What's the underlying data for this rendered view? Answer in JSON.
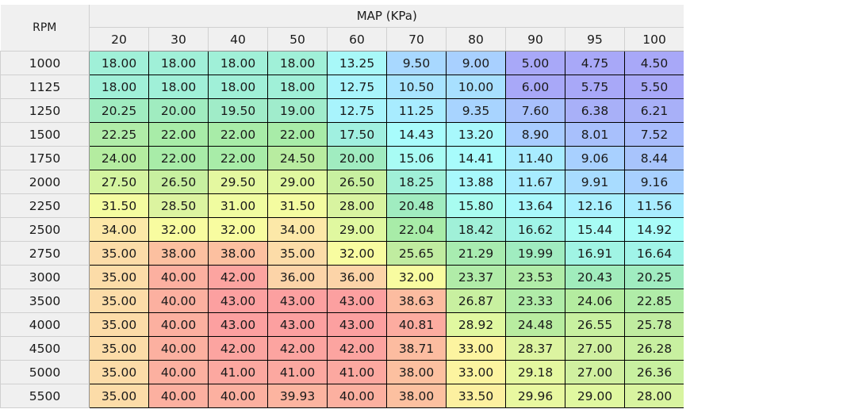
{
  "table": {
    "corner_label": "RPM",
    "column_group_label": "MAP (KPa)",
    "columns": [
      "20",
      "30",
      "40",
      "50",
      "60",
      "70",
      "80",
      "90",
      "95",
      "100"
    ],
    "rows": [
      {
        "rpm": "1000",
        "values": [
          "18.00",
          "18.00",
          "18.00",
          "18.00",
          "13.25",
          "9.50",
          "9.00",
          "5.00",
          "4.75",
          "4.50"
        ],
        "colors": [
          "#a0f0d8",
          "#a0f0d8",
          "#a0f0d8",
          "#a0f0d8",
          "#a8f8f8",
          "#a8d8ff",
          "#a8d0ff",
          "#a8a8f8",
          "#a8a8f8",
          "#a8a8f8"
        ]
      },
      {
        "rpm": "1125",
        "values": [
          "18.00",
          "18.00",
          "18.00",
          "18.00",
          "12.75",
          "10.50",
          "10.00",
          "6.00",
          "5.75",
          "5.50"
        ],
        "colors": [
          "#a0f0d8",
          "#a0f0d8",
          "#a0f0d8",
          "#a0f0d8",
          "#a8f4fc",
          "#a8e4ff",
          "#a8e0ff",
          "#a8a8f8",
          "#a8a8f8",
          "#a8a8f8"
        ]
      },
      {
        "rpm": "1250",
        "values": [
          "20.25",
          "20.00",
          "19.50",
          "19.00",
          "12.75",
          "11.25",
          "9.35",
          "7.60",
          "6.38",
          "6.21"
        ],
        "colors": [
          "#a0ecc0",
          "#a0ecc0",
          "#a0ecc8",
          "#a0eccc",
          "#a8f4fc",
          "#a8ecff",
          "#a8d4ff",
          "#a8c0fc",
          "#a8b0f8",
          "#a8b0f8"
        ]
      },
      {
        "rpm": "1500",
        "values": [
          "22.25",
          "22.00",
          "22.00",
          "22.00",
          "17.50",
          "14.43",
          "13.20",
          "8.90",
          "8.01",
          "7.52"
        ],
        "colors": [
          "#b0eca8",
          "#a8eca8",
          "#a8eca8",
          "#a8eca8",
          "#a0f0e0",
          "#a8fcfc",
          "#a8f8fc",
          "#a8ccff",
          "#a8c0fc",
          "#a8bcfc"
        ]
      },
      {
        "rpm": "1750",
        "values": [
          "24.00",
          "22.00",
          "22.00",
          "24.50",
          "20.00",
          "15.06",
          "14.41",
          "11.40",
          "9.06",
          "8.44"
        ],
        "colors": [
          "#b4eca0",
          "#a8eca8",
          "#a8eca8",
          "#b8eca0",
          "#a0ecc0",
          "#a8fcf4",
          "#a8fcfc",
          "#a8ecff",
          "#a8d0ff",
          "#a8c4fc"
        ]
      },
      {
        "rpm": "2000",
        "values": [
          "27.50",
          "26.50",
          "29.50",
          "29.00",
          "26.50",
          "18.25",
          "13.88",
          "11.67",
          "9.91",
          "9.16"
        ],
        "colors": [
          "#d4f4a0",
          "#c8f0a0",
          "#e4f8a0",
          "#e0f8a0",
          "#c8f0a0",
          "#a0f0d8",
          "#a8f8fc",
          "#a8ecff",
          "#a8dcff",
          "#a8d0ff"
        ]
      },
      {
        "rpm": "2250",
        "values": [
          "31.50",
          "28.50",
          "31.00",
          "31.50",
          "28.00",
          "20.48",
          "15.80",
          "13.64",
          "12.16",
          "11.56"
        ],
        "colors": [
          "#f4fca0",
          "#dcf4a0",
          "#f0fca0",
          "#f4fca0",
          "#d8f4a0",
          "#a0ecc0",
          "#a8fcf0",
          "#a8f8fc",
          "#a8f0ff",
          "#a8ecff"
        ]
      },
      {
        "rpm": "2500",
        "values": [
          "34.00",
          "32.00",
          "32.00",
          "34.00",
          "29.00",
          "22.04",
          "18.42",
          "16.62",
          "15.44",
          "14.92"
        ],
        "colors": [
          "#fce8a8",
          "#f8fca0",
          "#f8fca0",
          "#fce8a8",
          "#e0f8a0",
          "#a8eca8",
          "#a0f0d8",
          "#a0f4e8",
          "#a8fcf4",
          "#a8fcf8"
        ]
      },
      {
        "rpm": "2750",
        "values": [
          "35.00",
          "38.00",
          "38.00",
          "35.00",
          "32.00",
          "25.65",
          "21.29",
          "19.99",
          "16.91",
          "16.64"
        ],
        "colors": [
          "#fcdca8",
          "#fcc0a0",
          "#fcc0a0",
          "#fcdca8",
          "#f8fca0",
          "#c0eca0",
          "#a8ecb0",
          "#a0ecc0",
          "#a0f4e4",
          "#a0f4e8"
        ]
      },
      {
        "rpm": "3000",
        "values": [
          "35.00",
          "40.00",
          "42.00",
          "36.00",
          "36.00",
          "32.00",
          "23.37",
          "23.53",
          "20.43",
          "20.25"
        ],
        "colors": [
          "#fcdca8",
          "#fcb0a0",
          "#fca4a0",
          "#fcd4a8",
          "#fcd4a8",
          "#f8fca0",
          "#b0eca8",
          "#b0eca8",
          "#a0ecbc",
          "#a0ecc0"
        ]
      },
      {
        "rpm": "3500",
        "values": [
          "35.00",
          "40.00",
          "43.00",
          "43.00",
          "43.00",
          "38.63",
          "26.87",
          "23.33",
          "24.06",
          "22.85"
        ],
        "colors": [
          "#fcdca8",
          "#fcb0a0",
          "#fca0a0",
          "#fca0a0",
          "#fca0a0",
          "#fcbca0",
          "#c8f0a0",
          "#b0eca8",
          "#b4eca0",
          "#b0eca8"
        ]
      },
      {
        "rpm": "4000",
        "values": [
          "35.00",
          "40.00",
          "43.00",
          "43.00",
          "43.00",
          "40.81",
          "28.92",
          "24.48",
          "26.55",
          "25.78"
        ],
        "colors": [
          "#fcdca8",
          "#fcb0a0",
          "#fca0a0",
          "#fca0a0",
          "#fca0a0",
          "#fcaca0",
          "#e0f8a0",
          "#b8eca0",
          "#c8f0a0",
          "#c0eca0"
        ]
      },
      {
        "rpm": "4500",
        "values": [
          "35.00",
          "40.00",
          "42.00",
          "42.00",
          "42.00",
          "38.71",
          "33.00",
          "28.37",
          "27.00",
          "26.28"
        ],
        "colors": [
          "#fcdca8",
          "#fcb0a0",
          "#fca4a0",
          "#fca4a0",
          "#fca4a0",
          "#fcbca0",
          "#fcf4a0",
          "#dcf4a0",
          "#d0f0a0",
          "#c8f0a0"
        ]
      },
      {
        "rpm": "5000",
        "values": [
          "35.00",
          "40.00",
          "41.00",
          "41.00",
          "41.00",
          "38.00",
          "33.00",
          "29.18",
          "27.00",
          "26.36"
        ],
        "colors": [
          "#fcdca8",
          "#fcb0a0",
          "#fca8a0",
          "#fca8a0",
          "#fca8a0",
          "#fcc0a0",
          "#fcf4a0",
          "#e4f8a0",
          "#d0f0a0",
          "#c8f0a0"
        ]
      },
      {
        "rpm": "5500",
        "values": [
          "35.00",
          "40.00",
          "40.00",
          "39.93",
          "40.00",
          "38.00",
          "33.50",
          "29.96",
          "29.00",
          "28.00"
        ],
        "colors": [
          "#fcdca8",
          "#fcb0a0",
          "#fcb0a0",
          "#fcb4a0",
          "#fcb0a0",
          "#fcc0a0",
          "#fcf0a0",
          "#e8f8a0",
          "#e0f8a0",
          "#d8f4a0"
        ]
      }
    ]
  }
}
